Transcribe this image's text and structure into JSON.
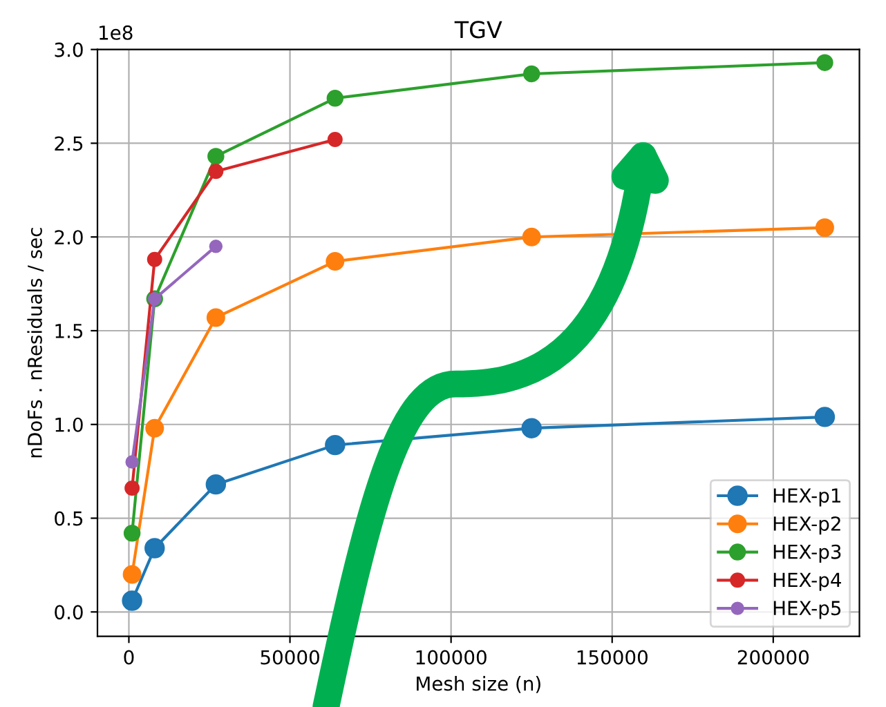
{
  "chart_data": {
    "type": "line",
    "title": "TGV",
    "xlabel": "Mesh size (n)",
    "ylabel": "nDoFs . nResiduals / sec",
    "annotations": [
      "1e8"
    ],
    "x": [
      1000,
      8000,
      27000,
      64000,
      125000,
      216000
    ],
    "series": [
      {
        "name": "HEX-p1",
        "color": "#1f77b4",
        "values": [
          0.06,
          0.34,
          0.68,
          0.89,
          0.98,
          1.04
        ]
      },
      {
        "name": "HEX-p2",
        "color": "#ff7f0e",
        "values": [
          0.2,
          0.98,
          1.57,
          1.87,
          2.0,
          2.05
        ]
      },
      {
        "name": "HEX-p3",
        "color": "#2ca02c",
        "values": [
          0.42,
          1.67,
          2.43,
          2.74,
          2.87,
          2.93
        ]
      },
      {
        "name": "HEX-p4",
        "color": "#d62728",
        "values": [
          0.66,
          1.88,
          2.35,
          2.52,
          null,
          null
        ]
      },
      {
        "name": "HEX-p5",
        "color": "#9467bd",
        "values": [
          0.8,
          1.67,
          1.95,
          null,
          null,
          null
        ]
      }
    ],
    "xlim": [
      -9750,
      226750
    ],
    "ylim": [
      -0.13,
      3.0
    ],
    "xticks": [
      0,
      50000,
      100000,
      150000,
      200000
    ],
    "yticks": [
      {
        "value": 0,
        "label": "0.0"
      },
      0.5,
      {
        "value": 1,
        "label": "1.0"
      },
      1.5,
      {
        "value": 2,
        "label": "2.0"
      },
      2.5,
      {
        "value": 3,
        "label": "3.0"
      }
    ],
    "grid": true,
    "legend": "bottom right",
    "marker": "circle",
    "line_style": "solid"
  }
}
